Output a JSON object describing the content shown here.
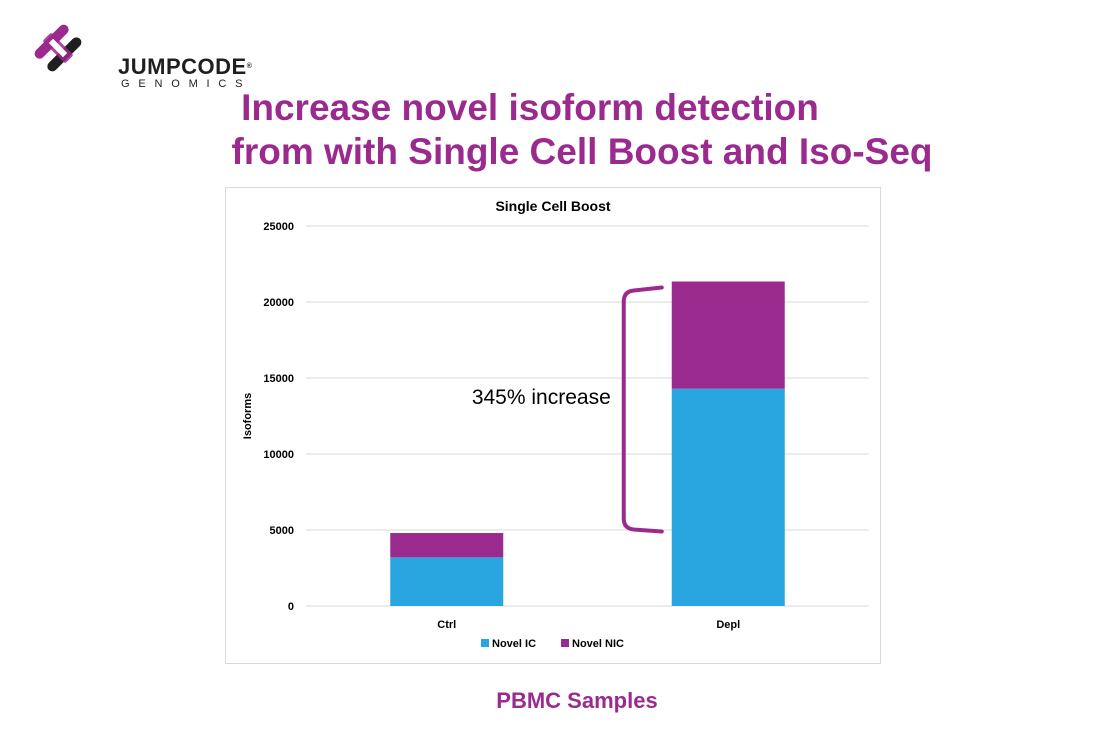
{
  "logo": {
    "brand": "JUMPCODE",
    "trademark": "®",
    "subtitle": "GENOMICS"
  },
  "headline": {
    "line1": "Increase novel isoform detection",
    "line2": "from with Single Cell Boost and Iso-Seq"
  },
  "footer": "PBMC Samples",
  "colors": {
    "accent": "#9b2a8e",
    "novel_ic": "#29a6df",
    "novel_nic": "#9b2a8e"
  },
  "chart_data": {
    "type": "bar",
    "stacked": true,
    "title": "Single Cell Boost",
    "xlabel": "",
    "ylabel": "Isoforms",
    "categories": [
      "Ctrl",
      "Depl"
    ],
    "series": [
      {
        "name": "Novel IC",
        "values": [
          3200,
          14300
        ]
      },
      {
        "name": "Novel NIC",
        "values": [
          1600,
          7050
        ]
      }
    ],
    "ylim": [
      0,
      25000
    ],
    "yticks": [
      "0",
      "5000",
      "10000",
      "15000",
      "20000",
      "25000"
    ],
    "grid": true,
    "legend": "bottom",
    "annotation": "345% increase"
  }
}
